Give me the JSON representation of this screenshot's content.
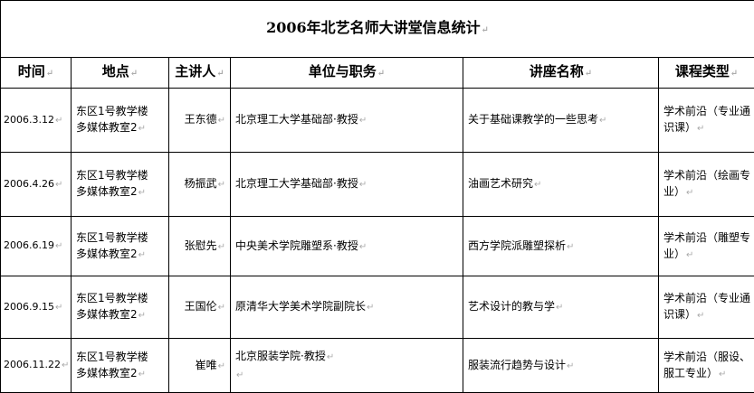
{
  "title": "2006年北艺名师大讲堂信息统计",
  "headers": [
    "时间",
    "地点",
    "主讲人",
    "单位与职务",
    "讲座名称",
    "课程类型"
  ],
  "rows": [
    {
      "date": "2006.3.12",
      "place_line1": "东区1号教学楼",
      "place_line2": "多媒体教室2",
      "speaker": "王东德",
      "unit": "北京理工大学基础部·教授",
      "lecture": "关于基础课教学的一些思考",
      "type": "学术前沿（专业通识课）"
    },
    {
      "date": "2006.4.26",
      "place_line1": "东区1号教学楼",
      "place_line2": "多媒体教室2",
      "speaker": "杨振武",
      "unit": "北京理工大学基础部·教授",
      "lecture": "油画艺术研究",
      "type": "学术前沿（绘画专业）"
    },
    {
      "date": "2006.6.19",
      "place_line1": "东区1号教学楼",
      "place_line2": "多媒体教室2",
      "speaker": "张慰先",
      "unit": "中央美术学院雕塑系·教授",
      "lecture": "西方学院派雕塑探析",
      "type": "学术前沿（雕塑专业）"
    },
    {
      "date": "2006.9.15",
      "place_line1": "东区1号教学楼",
      "place_line2": "多媒体教室2",
      "speaker": "王国伦",
      "unit": "原清华大学美术学院副院长",
      "lecture": "艺术设计的教与学",
      "type": "学术前沿（专业通识课）"
    },
    {
      "date": "2006.11.22",
      "place_line1": "东区1号教学楼",
      "place_line2": "多媒体教室2",
      "speaker": "崔唯",
      "unit": "北京服装学院·教授",
      "lecture": "服装流行趋势与设计",
      "type": "学术前沿（服设、服工专业）"
    }
  ]
}
